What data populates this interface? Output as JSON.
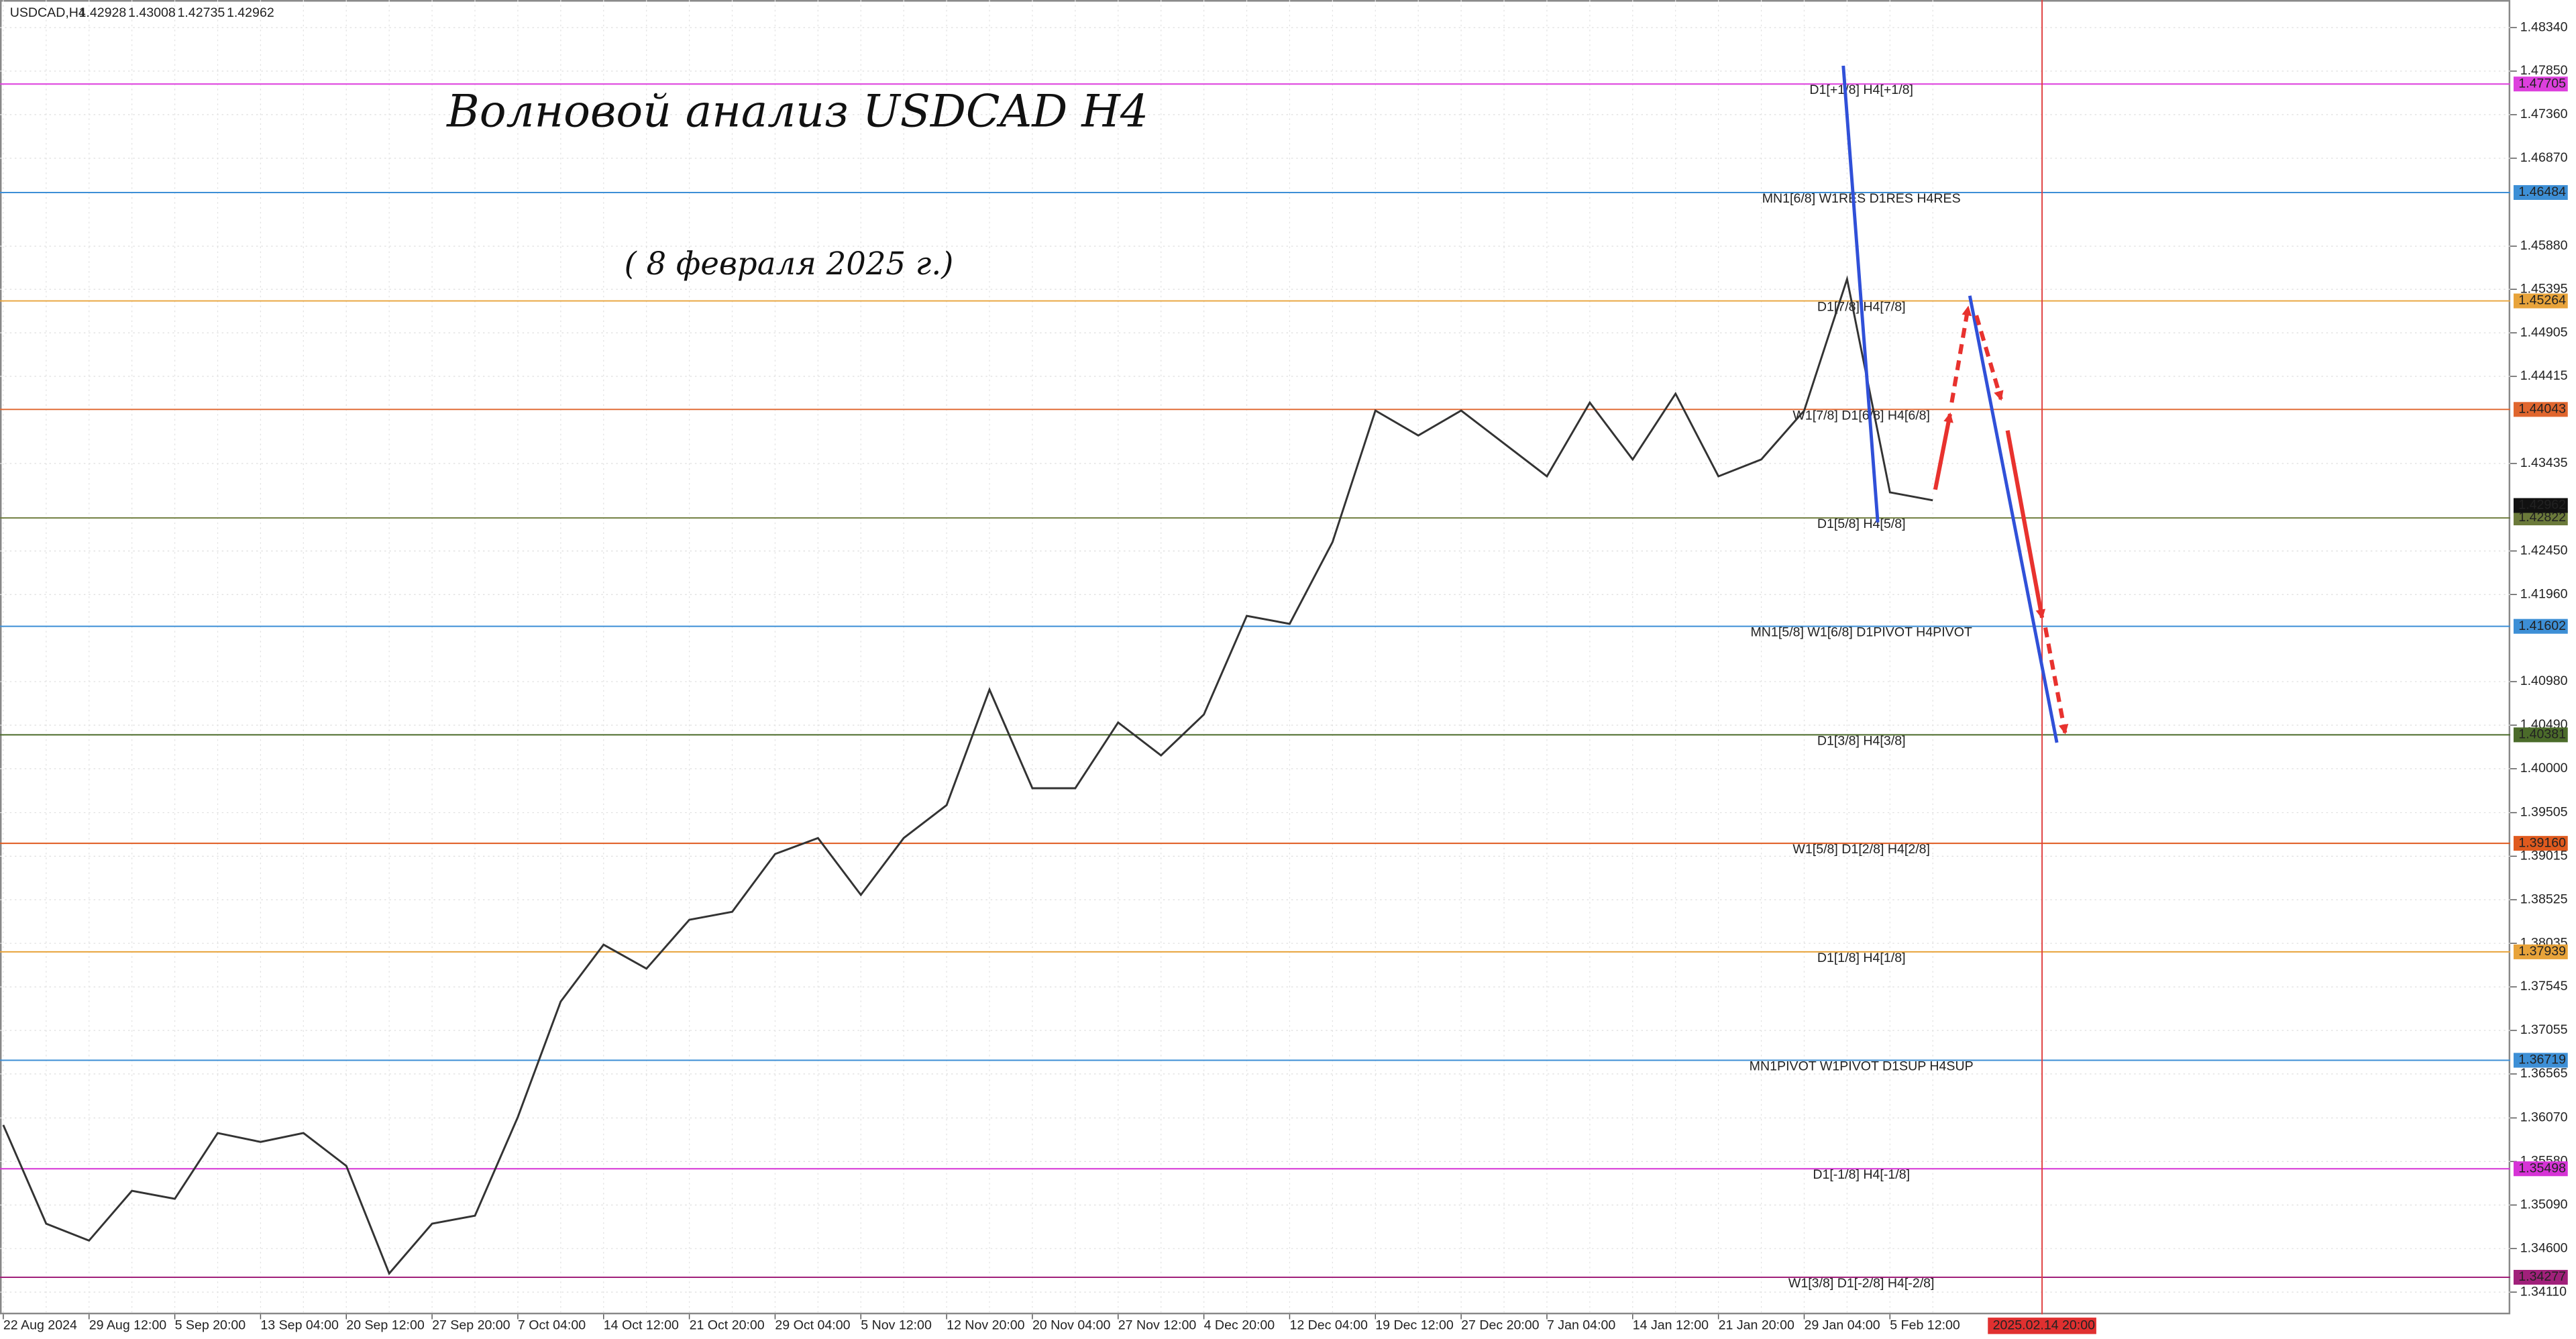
{
  "chart_data": {
    "type": "line",
    "symbol": "USDCAD,H4",
    "ohlc": [
      1.42928,
      1.43008,
      1.42735,
      1.42962
    ],
    "title": "Волновой анализ USDCAD H4",
    "subtitle": "( 8 февраля 2025 г.)",
    "categories": [
      "22 Aug 2024",
      null,
      "29 Aug 12:00",
      null,
      "5 Sep 20:00",
      null,
      "13 Sep 04:00",
      null,
      "20 Sep 12:00",
      null,
      "27 Sep 20:00",
      null,
      "7 Oct 04:00",
      null,
      "14 Oct 12:00",
      null,
      "21 Oct 20:00",
      null,
      "29 Oct 04:00",
      null,
      "5 Nov 12:00",
      null,
      "12 Nov 20:00",
      null,
      "20 Nov 04:00",
      null,
      "27 Nov 12:00",
      null,
      "4 Dec 20:00",
      null,
      "12 Dec 04:00",
      null,
      "19 Dec 12:00",
      null,
      "27 Dec 20:00",
      null,
      "7 Jan 04:00",
      null,
      "14 Jan 12:00",
      null,
      "21 Jan 20:00",
      null,
      "29 Jan 04:00",
      null,
      "5 Feb 12:00",
      null
    ],
    "series": [
      {
        "name": "USDCAD",
        "color": "#333333",
        "values": [
          1.3599,
          1.3488,
          1.3469,
          1.3525,
          1.3516,
          1.359,
          1.358,
          1.359,
          1.3553,
          1.3432,
          1.3488,
          1.3497,
          1.3608,
          1.3738,
          1.3802,
          1.3775,
          1.383,
          1.3839,
          1.3904,
          1.3922,
          1.3858,
          1.3922,
          1.3959,
          1.4089,
          1.3978,
          1.3978,
          1.4052,
          1.4015,
          1.4061,
          1.4172,
          1.4163,
          1.4255,
          1.4403,
          1.4375,
          1.4403,
          1.4366,
          1.4329,
          1.4412,
          1.4348,
          1.4422,
          1.4329,
          1.4348,
          1.4403,
          1.4551,
          1.4311,
          1.4302
        ]
      }
    ],
    "cursor_time": "2025.02.14 20:00",
    "last_price": 1.42962,
    "ylim": [
      1.3386,
      1.4865
    ],
    "yticks": [
      {
        "value": 1.4834,
        "label": "1.48340"
      },
      {
        "value": 1.4785,
        "label": "1.47850"
      },
      {
        "value": 1.4736,
        "label": "1.47360"
      },
      {
        "value": 1.4687,
        "label": "1.46870"
      },
      {
        "value": 1.4588,
        "label": "1.45880"
      },
      {
        "value": 1.45395,
        "label": "1.45395"
      },
      {
        "value": 1.44905,
        "label": "1.44905"
      },
      {
        "value": 1.44415,
        "label": "1.44415"
      },
      {
        "value": 1.43435,
        "label": "1.43435"
      },
      {
        "value": 1.4245,
        "label": "1.42450"
      },
      {
        "value": 1.4196,
        "label": "1.41960"
      },
      {
        "value": 1.4098,
        "label": "1.40980"
      },
      {
        "value": 1.4049,
        "label": "1.40490"
      },
      {
        "value": 1.4,
        "label": "1.40000"
      },
      {
        "value": 1.39505,
        "label": "1.39505"
      },
      {
        "value": 1.39015,
        "label": "1.39015"
      },
      {
        "value": 1.38525,
        "label": "1.38525"
      },
      {
        "value": 1.38035,
        "label": "1.38035"
      },
      {
        "value": 1.37545,
        "label": "1.37545"
      },
      {
        "value": 1.37055,
        "label": "1.37055"
      },
      {
        "value": 1.36565,
        "label": "1.36565"
      },
      {
        "value": 1.3607,
        "label": "1.36070"
      },
      {
        "value": 1.3558,
        "label": "1.35580"
      },
      {
        "value": 1.3509,
        "label": "1.35090"
      },
      {
        "value": 1.346,
        "label": "1.34600"
      },
      {
        "value": 1.3411,
        "label": "1.34110"
      }
    ],
    "grid": true,
    "levels": {
      "names": [
        "D1[+1/8] H4[+1/8]",
        "MN1[6/8] W1RES D1RES H4RES",
        "D1[7/8] H4[7/8]",
        "W1[7/8] D1[6/8] H4[6/8]",
        "D1[5/8] H4[5/8]",
        "MN1[5/8] W1[6/8] D1PIVOT H4PIVOT",
        "D1[3/8] H4[3/8]",
        "W1[5/8] D1[2/8] H4[2/8]",
        "D1[1/8] H4[1/8]",
        "MN1PIVOT W1PIVOT D1SUP H4SUP",
        "D1[-1/8] H4[-1/8]",
        "W1[3/8] D1[-2/8] H4[-2/8]"
      ],
      "values": [
        1.47705,
        1.46484,
        1.45264,
        1.44043,
        1.42822,
        1.41602,
        1.40381,
        1.3916,
        1.37939,
        1.36719,
        1.35498,
        1.34277
      ],
      "value_labels": [
        "1.47705",
        "1.46484",
        "1.45264",
        "1.44043",
        "1.42822",
        "1.41602",
        "1.40381",
        "1.39160",
        "1.37939",
        "1.36719",
        "1.35498",
        "1.34277"
      ],
      "colors": [
        "#dd3fdd",
        "#3d8fd6",
        "#e8a33a",
        "#e0662e",
        "#6b7a3a",
        "#3d8fd6",
        "#4b6b2a",
        "#e05a1e",
        "#e8a33a",
        "#3d8fd6",
        "#d633d6",
        "#a0207a"
      ]
    }
  }
}
